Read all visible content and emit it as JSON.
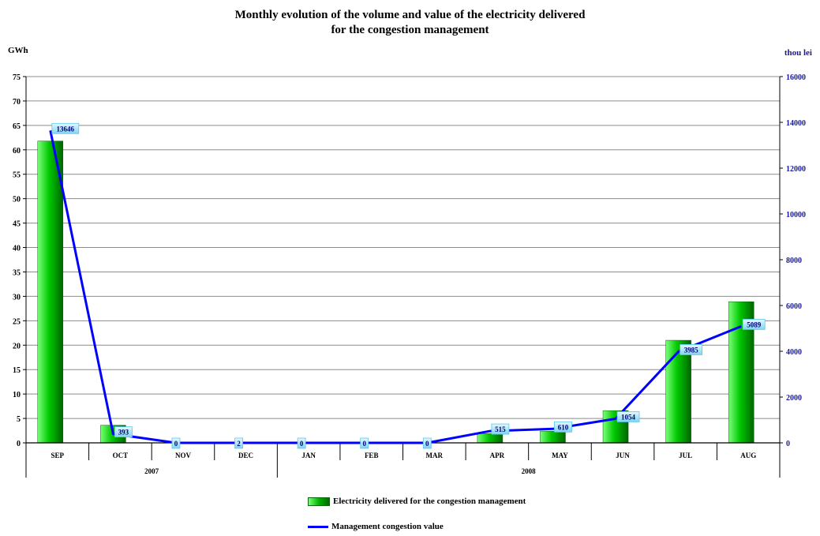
{
  "chart_data": {
    "type": "bar",
    "title_line1": "Monthly evolution of the volume and value of the electricity delivered",
    "title_line2": "for the congestion management",
    "ylabel_left": "GWh",
    "ylabel_right": "thou lei",
    "categories": [
      "SEP",
      "OCT",
      "NOV",
      "DEC",
      "JAN",
      "FEB",
      "MAR",
      "APR",
      "MAY",
      "JUN",
      "JUL",
      "AUG"
    ],
    "year_groups": [
      {
        "label": "2007",
        "months": [
          "SEP",
          "OCT",
          "NOV",
          "DEC"
        ]
      },
      {
        "label": "2008",
        "months": [
          "JAN",
          "FEB",
          "MAR",
          "APR",
          "MAY",
          "JUN",
          "JUL",
          "AUG"
        ]
      }
    ],
    "ylim_left": [
      0,
      75
    ],
    "yticks_left": [
      0,
      5,
      10,
      15,
      20,
      25,
      30,
      35,
      40,
      45,
      50,
      55,
      60,
      65,
      70,
      75
    ],
    "ylim_right": [
      0,
      16000
    ],
    "yticks_right": [
      0,
      2000,
      4000,
      6000,
      8000,
      10000,
      12000,
      14000,
      16000
    ],
    "grid": true,
    "legend_position": "bottom",
    "series": [
      {
        "name": "Electricity delivered for the congestion management",
        "type": "bar",
        "axis": "left",
        "color": "#00b400",
        "values": [
          61.8,
          3.6,
          0,
          0,
          0,
          0,
          0,
          1.9,
          2.4,
          6.6,
          21.0,
          28.9
        ]
      },
      {
        "name": "Management congestion value",
        "type": "line",
        "axis": "right",
        "color": "#0000ff",
        "values": [
          13646,
          393,
          0,
          2,
          0,
          0,
          0,
          515,
          610,
          1054,
          3985,
          5089
        ],
        "labels": [
          "13646",
          "393",
          "0",
          "2",
          "0",
          "0",
          "0",
          "515",
          "610",
          "1054",
          "3985",
          "5089"
        ]
      }
    ]
  }
}
